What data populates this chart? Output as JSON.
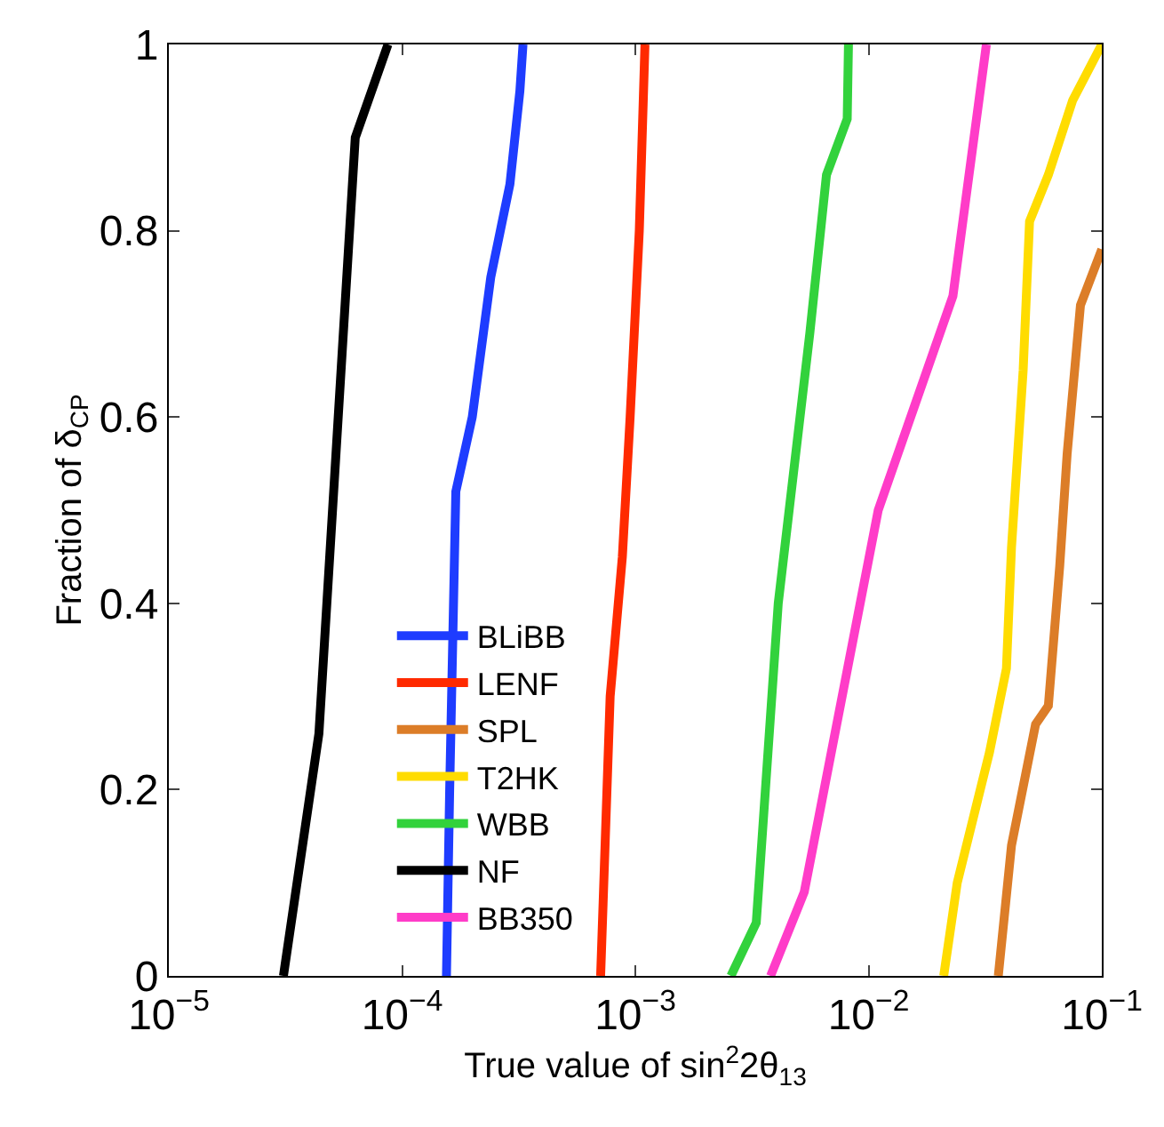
{
  "chart_data": {
    "type": "line",
    "xlabel": "True value of sin$^{2}$2θ$_{13}$",
    "ylabel": "Fraction of δ$_{CP}$",
    "log": "x",
    "legend": "bottom",
    "marker": "none",
    "line_style": "solid",
    "xlim": [
      1e-05,
      0.1
    ],
    "ylim": [
      0,
      1
    ],
    "xticks": [
      {
        "value": 1e-05,
        "label": "10$^{−5}$"
      },
      {
        "value": 0.0001,
        "label": "10$^{−4}$"
      },
      {
        "value": 0.001,
        "label": "10$^{−3}$"
      },
      {
        "value": 0.01,
        "label": "10$^{−2}$"
      },
      {
        "value": 0.1,
        "label": "10$^{−1}$"
      }
    ],
    "yticks": [
      0,
      0.2,
      0.4,
      0.6,
      0.8,
      1
    ],
    "series": [
      {
        "name": "BLiBB",
        "color": "#1e3cff",
        "x": [
          0.000155,
          0.00016,
          0.00017,
          0.0002,
          0.00024,
          0.00029,
          0.00032,
          0.00033
        ],
        "values": [
          0,
          0.2,
          0.52,
          0.6,
          0.75,
          0.85,
          0.95,
          1
        ]
      },
      {
        "name": "LENF",
        "color": "#ff2a00",
        "x": [
          0.00071,
          0.00078,
          0.00088,
          0.00095,
          0.00104,
          0.0011
        ],
        "values": [
          0,
          0.3,
          0.45,
          0.6,
          0.8,
          1
        ]
      },
      {
        "name": "SPL",
        "color": "#dc7d28",
        "x": [
          0.036,
          0.041,
          0.052,
          0.059,
          0.066,
          0.071,
          0.081,
          0.1
        ],
        "values": [
          0,
          0.14,
          0.27,
          0.29,
          0.44,
          0.56,
          0.72,
          0.78
        ]
      },
      {
        "name": "T2HK",
        "color": "#ffdc00",
        "x": [
          0.021,
          0.024,
          0.033,
          0.039,
          0.041,
          0.046,
          0.049,
          0.059,
          0.075,
          0.1
        ],
        "values": [
          0,
          0.1,
          0.24,
          0.33,
          0.46,
          0.65,
          0.81,
          0.86,
          0.94,
          1
        ]
      },
      {
        "name": "WBB",
        "color": "#32d23c",
        "x": [
          0.00257,
          0.0033,
          0.0041,
          0.0056,
          0.0066,
          0.0081,
          0.0082
        ],
        "values": [
          0,
          0.057,
          0.4,
          0.69,
          0.86,
          0.92,
          1
        ]
      },
      {
        "name": "NF",
        "color": "#000000",
        "x": [
          3.1e-05,
          4.4e-05,
          6.3e-05,
          8.7e-05
        ],
        "values": [
          0,
          0.26,
          0.9,
          1
        ]
      },
      {
        "name": "BB350",
        "color": "#ff3cc8",
        "x": [
          0.0038,
          0.0053,
          0.011,
          0.023,
          0.032
        ],
        "values": [
          0,
          0.09,
          0.5,
          0.73,
          1
        ]
      }
    ]
  }
}
